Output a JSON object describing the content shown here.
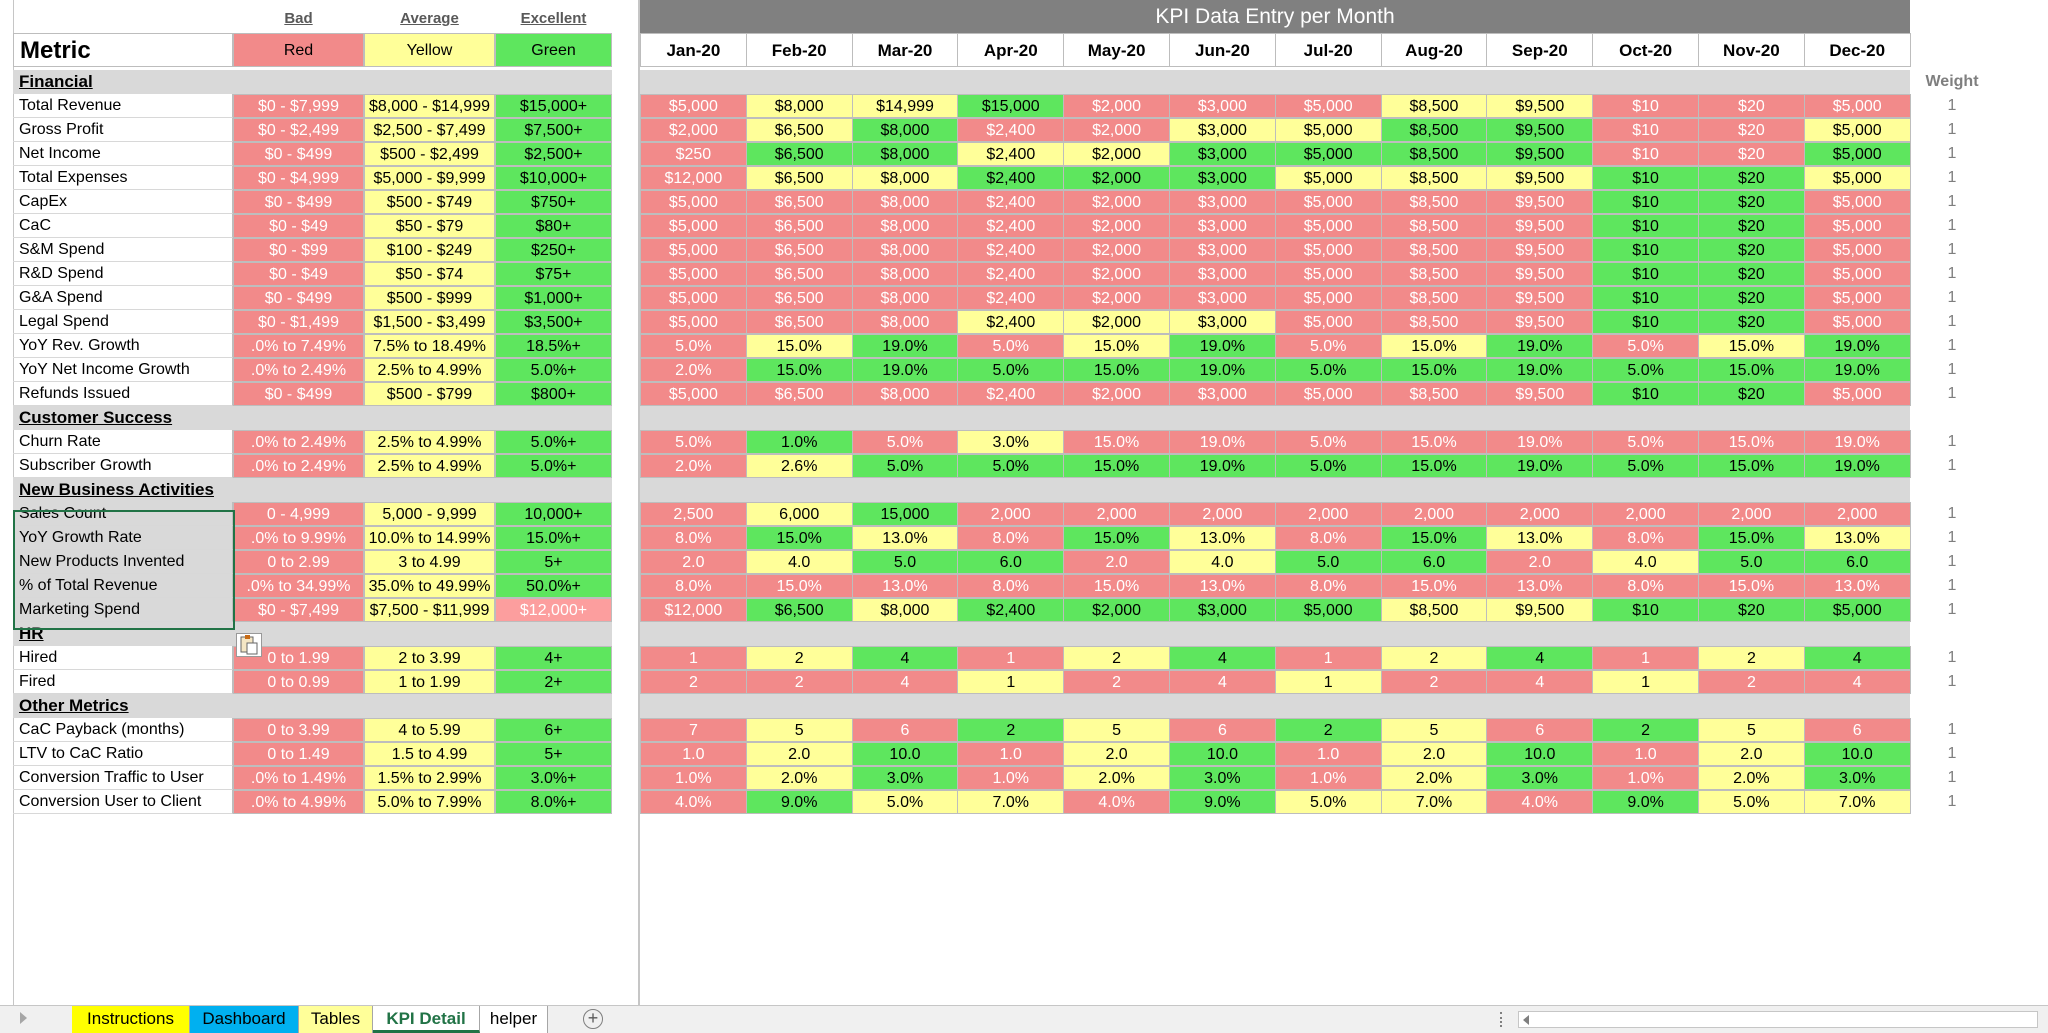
{
  "header": {
    "metric_title": "Metric",
    "bad": "Bad",
    "average": "Average",
    "excellent": "Excellent",
    "red": "Red",
    "yellow": "Yellow",
    "green": "Green",
    "kpi_title": "KPI Data Entry per Month",
    "weight": "Weight"
  },
  "months": [
    "Jan-20",
    "Feb-20",
    "Mar-20",
    "Apr-20",
    "May-20",
    "Jun-20",
    "Jul-20",
    "Aug-20",
    "Sep-20",
    "Oct-20",
    "Nov-20",
    "Dec-20"
  ],
  "colors": {
    "R": "#f28a8a",
    "Y": "#ffff99",
    "G": "#5ee65e",
    "M": "#fc9e9e"
  },
  "rows": [
    {
      "type": "section",
      "name": "Financial"
    },
    {
      "type": "row",
      "name": "Total Revenue",
      "thr": [
        "$0 - $7,999",
        "$8,000 - $14,999",
        "$15,000+"
      ],
      "vals": [
        "$5,000",
        "$8,000",
        "$14,999",
        "$15,000",
        "$2,000",
        "$3,000",
        "$5,000",
        "$8,500",
        "$9,500",
        "$10",
        "$20",
        "$5,000"
      ],
      "cols": "RYYGRRRYYRRR",
      "weight": "1"
    },
    {
      "type": "row",
      "name": "Gross Profit",
      "thr": [
        "$0 - $2,499",
        "$2,500 - $7,499",
        "$7,500+"
      ],
      "vals": [
        "$2,000",
        "$6,500",
        "$8,000",
        "$2,400",
        "$2,000",
        "$3,000",
        "$5,000",
        "$8,500",
        "$9,500",
        "$10",
        "$20",
        "$5,000"
      ],
      "cols": "RYGRRYYGGRRY",
      "weight": "1"
    },
    {
      "type": "row",
      "name": "Net Income",
      "thr": [
        "$0 - $499",
        "$500 - $2,499",
        "$2,500+"
      ],
      "vals": [
        "$250",
        "$6,500",
        "$8,000",
        "$2,400",
        "$2,000",
        "$3,000",
        "$5,000",
        "$8,500",
        "$9,500",
        "$10",
        "$20",
        "$5,000"
      ],
      "cols": "RGGYYGGGGRRG",
      "weight": "1"
    },
    {
      "type": "row",
      "name": "Total Expenses",
      "thr": [
        "$0 - $4,999",
        "$5,000 - $9,999",
        "$10,000+"
      ],
      "vals": [
        "$12,000",
        "$6,500",
        "$8,000",
        "$2,400",
        "$2,000",
        "$3,000",
        "$5,000",
        "$8,500",
        "$9,500",
        "$10",
        "$20",
        "$5,000"
      ],
      "cols": "RYYGGGYYYGGY",
      "weight": "1"
    },
    {
      "type": "row",
      "name": "CapEx",
      "thr": [
        "$0 - $499",
        "$500 - $749",
        "$750+"
      ],
      "vals": [
        "$5,000",
        "$6,500",
        "$8,000",
        "$2,400",
        "$2,000",
        "$3,000",
        "$5,000",
        "$8,500",
        "$9,500",
        "$10",
        "$20",
        "$5,000"
      ],
      "cols": "RRRRRRRRRGGR",
      "weight": "1"
    },
    {
      "type": "row",
      "name": "CaC",
      "thr": [
        "$0 - $49",
        "$50 - $79",
        "$80+"
      ],
      "vals": [
        "$5,000",
        "$6,500",
        "$8,000",
        "$2,400",
        "$2,000",
        "$3,000",
        "$5,000",
        "$8,500",
        "$9,500",
        "$10",
        "$20",
        "$5,000"
      ],
      "cols": "RRRRRRRRRGGR",
      "weight": "1"
    },
    {
      "type": "row",
      "name": "S&M Spend",
      "thr": [
        "$0 - $99",
        "$100 - $249",
        "$250+"
      ],
      "vals": [
        "$5,000",
        "$6,500",
        "$8,000",
        "$2,400",
        "$2,000",
        "$3,000",
        "$5,000",
        "$8,500",
        "$9,500",
        "$10",
        "$20",
        "$5,000"
      ],
      "cols": "RRRRRRRRRGGR",
      "weight": "1"
    },
    {
      "type": "row",
      "name": "R&D Spend",
      "thr": [
        "$0 - $49",
        "$50 - $74",
        "$75+"
      ],
      "vals": [
        "$5,000",
        "$6,500",
        "$8,000",
        "$2,400",
        "$2,000",
        "$3,000",
        "$5,000",
        "$8,500",
        "$9,500",
        "$10",
        "$20",
        "$5,000"
      ],
      "cols": "RRRRRRRRRGGR",
      "weight": "1"
    },
    {
      "type": "row",
      "name": "G&A Spend",
      "thr": [
        "$0 - $499",
        "$500 - $999",
        "$1,000+"
      ],
      "vals": [
        "$5,000",
        "$6,500",
        "$8,000",
        "$2,400",
        "$2,000",
        "$3,000",
        "$5,000",
        "$8,500",
        "$9,500",
        "$10",
        "$20",
        "$5,000"
      ],
      "cols": "RRRRRRRRRGGR",
      "weight": "1"
    },
    {
      "type": "row",
      "name": "Legal Spend",
      "thr": [
        "$0 - $1,499",
        "$1,500 - $3,499",
        "$3,500+"
      ],
      "vals": [
        "$5,000",
        "$6,500",
        "$8,000",
        "$2,400",
        "$2,000",
        "$3,000",
        "$5,000",
        "$8,500",
        "$9,500",
        "$10",
        "$20",
        "$5,000"
      ],
      "cols": "RRRYYYRRRGGR",
      "weight": "1"
    },
    {
      "type": "row",
      "name": "YoY Rev. Growth",
      "thr": [
        ".0% to 7.49%",
        "7.5% to 18.49%",
        "18.5%+"
      ],
      "vals": [
        "5.0%",
        "15.0%",
        "19.0%",
        "5.0%",
        "15.0%",
        "19.0%",
        "5.0%",
        "15.0%",
        "19.0%",
        "5.0%",
        "15.0%",
        "19.0%"
      ],
      "cols": "RYGRYGRYGRYG",
      "weight": "1"
    },
    {
      "type": "row",
      "name": "YoY Net Income Growth",
      "thr": [
        ".0% to 2.49%",
        "2.5% to 4.99%",
        "5.0%+"
      ],
      "vals": [
        "2.0%",
        "15.0%",
        "19.0%",
        "5.0%",
        "15.0%",
        "19.0%",
        "5.0%",
        "15.0%",
        "19.0%",
        "5.0%",
        "15.0%",
        "19.0%"
      ],
      "cols": "RGGGGGGGGGGG",
      "weight": "1"
    },
    {
      "type": "row",
      "name": "Refunds Issued",
      "thr": [
        "$0 - $499",
        "$500 - $799",
        "$800+"
      ],
      "vals": [
        "$5,000",
        "$6,500",
        "$8,000",
        "$2,400",
        "$2,000",
        "$3,000",
        "$5,000",
        "$8,500",
        "$9,500",
        "$10",
        "$20",
        "$5,000"
      ],
      "cols": "RRRRRRRRRGGR",
      "weight": "1"
    },
    {
      "type": "section",
      "name": "Customer Success"
    },
    {
      "type": "row",
      "name": "Churn Rate",
      "thr": [
        ".0% to 2.49%",
        "2.5% to 4.99%",
        "5.0%+"
      ],
      "vals": [
        "5.0%",
        "1.0%",
        "5.0%",
        "3.0%",
        "15.0%",
        "19.0%",
        "5.0%",
        "15.0%",
        "19.0%",
        "5.0%",
        "15.0%",
        "19.0%"
      ],
      "cols": "RGRYRRRRRRRR",
      "weight": "1"
    },
    {
      "type": "row",
      "name": "Subscriber Growth",
      "thr": [
        ".0% to 2.49%",
        "2.5% to 4.99%",
        "5.0%+"
      ],
      "vals": [
        "2.0%",
        "2.6%",
        "5.0%",
        "5.0%",
        "15.0%",
        "19.0%",
        "5.0%",
        "15.0%",
        "19.0%",
        "5.0%",
        "15.0%",
        "19.0%"
      ],
      "cols": "RYGGGGGGGGGG",
      "weight": "1"
    },
    {
      "type": "section",
      "name": "New Business Activities"
    },
    {
      "type": "row",
      "sel": true,
      "name": "Sales Count",
      "thr": [
        "0 - 4,999",
        "5,000 - 9,999",
        "10,000+"
      ],
      "vals": [
        "2,500",
        "6,000",
        "15,000",
        "2,000",
        "2,000",
        "2,000",
        "2,000",
        "2,000",
        "2,000",
        "2,000",
        "2,000",
        "2,000"
      ],
      "cols": "RYGRRRRRRRRR",
      "weight": "1"
    },
    {
      "type": "row",
      "sel": true,
      "name": "YoY Growth Rate",
      "thr": [
        ".0% to 9.99%",
        "10.0% to 14.99%",
        "15.0%+"
      ],
      "vals": [
        "8.0%",
        "15.0%",
        "13.0%",
        "8.0%",
        "15.0%",
        "13.0%",
        "8.0%",
        "15.0%",
        "13.0%",
        "8.0%",
        "15.0%",
        "13.0%"
      ],
      "cols": "RGYRGYRGYRGY",
      "weight": "1"
    },
    {
      "type": "row",
      "sel": true,
      "name": "New Products Invented",
      "thr": [
        "0 to 2.99",
        "3 to 4.99",
        "5+"
      ],
      "vals": [
        "2.0",
        "4.0",
        "5.0",
        "6.0",
        "2.0",
        "4.0",
        "5.0",
        "6.0",
        "2.0",
        "4.0",
        "5.0",
        "6.0"
      ],
      "cols": "RYGGRYGGRYGG",
      "weight": "1"
    },
    {
      "type": "row",
      "sel": true,
      "name": "% of Total Revenue",
      "thr": [
        ".0% to 34.99%",
        "35.0% to 49.99%",
        "50.0%+"
      ],
      "vals": [
        "8.0%",
        "15.0%",
        "13.0%",
        "8.0%",
        "15.0%",
        "13.0%",
        "8.0%",
        "15.0%",
        "13.0%",
        "8.0%",
        "15.0%",
        "13.0%"
      ],
      "cols": "RRRRRRRRRRRR",
      "weight": "1"
    },
    {
      "type": "row",
      "sel": true,
      "name": "Marketing Spend",
      "thr": [
        "$0 - $7,499",
        "$7,500 - $11,999",
        "$12,000+"
      ],
      "vals": [
        "$12,000",
        "$6,500",
        "$8,000",
        "$2,400",
        "$2,000",
        "$3,000",
        "$5,000",
        "$8,500",
        "$9,500",
        "$10",
        "$20",
        "$5,000"
      ],
      "cols": "RGYGGGGYYGGG",
      "lastcol": "M",
      "weight": "1"
    },
    {
      "type": "section",
      "name": "HR"
    },
    {
      "type": "row",
      "name": "Hired",
      "thr": [
        "0 to 1.99",
        "2 to 3.99",
        "4+"
      ],
      "vals": [
        "1",
        "2",
        "4",
        "1",
        "2",
        "4",
        "1",
        "2",
        "4",
        "1",
        "2",
        "4"
      ],
      "cols": "RYGRYGRYGRYG",
      "weight": "1"
    },
    {
      "type": "row",
      "name": "Fired",
      "thr": [
        "0 to 0.99",
        "1 to 1.99",
        "2+"
      ],
      "vals": [
        "2",
        "2",
        "4",
        "1",
        "2",
        "4",
        "1",
        "2",
        "4",
        "1",
        "2",
        "4"
      ],
      "cols": "RRRYRRYRRYRR",
      "weight": "1"
    },
    {
      "type": "section",
      "name": "Other Metrics"
    },
    {
      "type": "row",
      "name": "CaC Payback (months)",
      "thr": [
        "0 to 3.99",
        "4 to 5.99",
        "6+"
      ],
      "vals": [
        "7",
        "5",
        "6",
        "2",
        "5",
        "6",
        "2",
        "5",
        "6",
        "2",
        "5",
        "6"
      ],
      "cols": "RYRGYRGYRGYR",
      "weight": "1"
    },
    {
      "type": "row",
      "name": "LTV to CaC Ratio",
      "thr": [
        "0 to 1.49",
        "1.5 to 4.99",
        "5+"
      ],
      "vals": [
        "1.0",
        "2.0",
        "10.0",
        "1.0",
        "2.0",
        "10.0",
        "1.0",
        "2.0",
        "10.0",
        "1.0",
        "2.0",
        "10.0"
      ],
      "cols": "RYGRYGRYGRYG",
      "weight": "1"
    },
    {
      "type": "row",
      "name": "Conversion Traffic to User",
      "thr": [
        ".0% to 1.49%",
        "1.5% to 2.99%",
        "3.0%+"
      ],
      "vals": [
        "1.0%",
        "2.0%",
        "3.0%",
        "1.0%",
        "2.0%",
        "3.0%",
        "1.0%",
        "2.0%",
        "3.0%",
        "1.0%",
        "2.0%",
        "3.0%"
      ],
      "cols": "RYGRYGRYGRYG",
      "weight": "1"
    },
    {
      "type": "row",
      "name": "Conversion User to Client",
      "thr": [
        ".0% to 4.99%",
        "5.0% to 7.99%",
        "8.0%+"
      ],
      "vals": [
        "4.0%",
        "9.0%",
        "5.0%",
        "7.0%",
        "4.0%",
        "9.0%",
        "5.0%",
        "7.0%",
        "4.0%",
        "9.0%",
        "5.0%",
        "7.0%"
      ],
      "cols": "RGYYRGYYRGYY",
      "weight": "1"
    }
  ],
  "tabs": [
    {
      "label": "Instructions",
      "color": "#ffff00"
    },
    {
      "label": "Dashboard",
      "color": "#00b0f0"
    },
    {
      "label": "Tables",
      "color": "#ffff99"
    },
    {
      "label": "KPI Detail",
      "color": "#ffffff",
      "active": true
    },
    {
      "label": "helper",
      "color": "#ffffff"
    }
  ],
  "tabbar": {
    "add_tab": "+"
  }
}
